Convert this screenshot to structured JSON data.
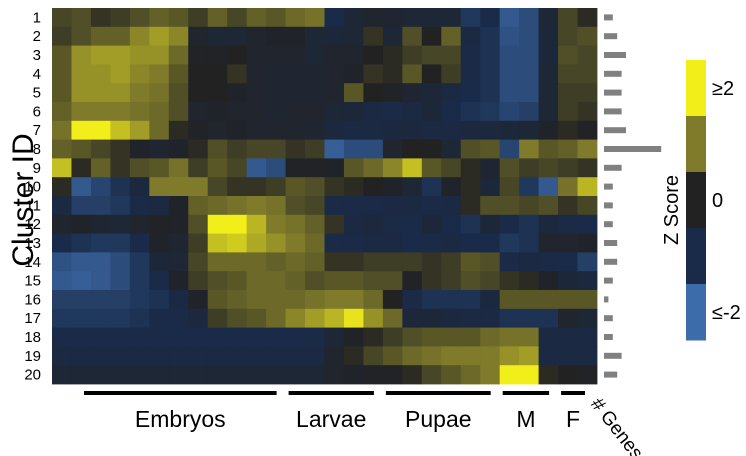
{
  "chart_data": {
    "type": "heatmap",
    "ylabel": "Cluster ID",
    "row_labels": [
      "1",
      "2",
      "3",
      "4",
      "5",
      "6",
      "7",
      "8",
      "9",
      "10",
      "11",
      "12",
      "13",
      "14",
      "15",
      "16",
      "17",
      "18",
      "19",
      "20"
    ],
    "groups": [
      {
        "label": "Embryos",
        "from": 0,
        "to": 11
      },
      {
        "label": "Larvae",
        "from": 12,
        "to": 16
      },
      {
        "label": "Pupae",
        "from": 17,
        "to": 22
      },
      {
        "label": "M",
        "from": 23,
        "to": 25
      },
      {
        "label": "F",
        "from": 26,
        "to": 27
      }
    ],
    "colorbar": {
      "title": "Z Score",
      "min": -2,
      "max": 2,
      "ticks": [
        {
          "value": 2,
          "label": "≥2"
        },
        {
          "value": 0,
          "label": "0"
        },
        {
          "value": -2,
          "label": "≤-2"
        }
      ],
      "colors": [
        "#3d6cab",
        "#1a2b4a",
        "#222222",
        "#7f7b2b",
        "#f2ee1a"
      ]
    },
    "genes_label": "# Genes",
    "gene_counts": [
      2,
      3,
      5,
      4,
      4,
      4,
      5,
      13,
      4,
      2,
      2,
      2,
      3,
      3,
      2,
      1,
      2,
      2,
      4,
      3
    ],
    "z": [
      [
        0.4,
        0.5,
        0.2,
        0.3,
        0.5,
        0.7,
        0.6,
        0.3,
        0.7,
        0.4,
        0.7,
        0.6,
        0.8,
        0.9,
        -1.0,
        -0.5,
        -0.3,
        -0.4,
        -0.5,
        -0.5,
        -0.5,
        -1.2,
        -1.0,
        -1.7,
        -1.5,
        -0.5,
        0.4,
        0.1
      ],
      [
        0.3,
        0.5,
        0.7,
        0.7,
        1.1,
        1.3,
        1.1,
        -0.3,
        -0.5,
        -0.5,
        -0.3,
        -0.2,
        -0.2,
        -0.5,
        -0.6,
        -0.5,
        0.2,
        -0.5,
        0.5,
        0.0,
        0.7,
        -0.8,
        -1.1,
        -1.6,
        -1.5,
        -0.6,
        0.4,
        0.5
      ],
      [
        0.6,
        1.2,
        1.3,
        1.3,
        1.2,
        1.2,
        0.8,
        -0.1,
        -0.1,
        0.0,
        -0.3,
        -0.3,
        -0.3,
        -0.5,
        -0.3,
        -0.3,
        0.0,
        0.1,
        0.3,
        0.4,
        0.4,
        -0.9,
        -1.1,
        -1.5,
        -1.5,
        -0.6,
        0.5,
        0.4
      ],
      [
        0.6,
        1.2,
        1.2,
        1.3,
        1.1,
        1.0,
        0.6,
        0.0,
        0.0,
        0.2,
        -0.3,
        -0.4,
        -0.4,
        -0.4,
        -0.3,
        -0.2,
        0.2,
        0.1,
        0.6,
        0.0,
        0.3,
        -0.9,
        -1.1,
        -1.5,
        -1.5,
        -0.5,
        0.4,
        0.4
      ],
      [
        0.6,
        1.2,
        1.2,
        1.2,
        1.0,
        0.9,
        0.5,
        0.0,
        0.0,
        -0.2,
        -0.3,
        -0.4,
        -0.4,
        -0.4,
        -0.3,
        0.6,
        0.0,
        -0.1,
        -0.4,
        -0.6,
        -0.8,
        -1.0,
        -1.1,
        -1.5,
        -1.5,
        -0.5,
        0.3,
        0.3
      ],
      [
        0.7,
        1.0,
        1.0,
        1.0,
        0.9,
        0.8,
        0.5,
        -0.3,
        -0.2,
        -0.3,
        -0.3,
        -0.4,
        -0.3,
        -0.3,
        -0.5,
        -0.6,
        -0.8,
        -0.9,
        -0.8,
        -0.6,
        -1.0,
        -1.1,
        -1.2,
        -1.4,
        -1.3,
        -0.5,
        0.3,
        0.2
      ],
      [
        0.9,
        2.0,
        2.0,
        1.6,
        1.3,
        0.8,
        0.1,
        -0.1,
        -0.3,
        -0.2,
        -0.3,
        -0.3,
        -0.3,
        -0.4,
        -0.7,
        -0.8,
        -0.8,
        -0.7,
        -0.7,
        -0.8,
        -0.8,
        -0.7,
        -0.7,
        -0.6,
        -0.5,
        -0.2,
        0.1,
        -0.1
      ],
      [
        0.7,
        0.6,
        0.4,
        0.2,
        -0.2,
        -0.4,
        -0.2,
        0.1,
        0.5,
        0.3,
        0.4,
        0.4,
        0.2,
        0.3,
        -1.8,
        -1.5,
        -1.5,
        -0.3,
        0.0,
        0.0,
        -0.5,
        0.5,
        0.6,
        -1.4,
        1.0,
        0.6,
        0.7,
        1.0
      ],
      [
        1.6,
        0.1,
        0.7,
        0.2,
        0.5,
        0.6,
        0.9,
        0.3,
        0.6,
        0.4,
        -1.7,
        -1.5,
        -0.1,
        -0.1,
        -0.2,
        0.6,
        0.8,
        1.1,
        1.6,
        0.6,
        0.4,
        0.1,
        -0.4,
        0.5,
        0.3,
        0.4,
        0.3,
        0.2
      ],
      [
        0.1,
        -1.7,
        -1.4,
        -1.1,
        -0.7,
        1.0,
        1.0,
        1.0,
        0.4,
        0.2,
        0.2,
        0.3,
        0.6,
        0.5,
        0.2,
        0.1,
        0.0,
        -0.2,
        -0.5,
        -1.1,
        -0.2,
        0.1,
        -0.6,
        0.4,
        -1.2,
        -1.7,
        0.9,
        1.5
      ],
      [
        -0.8,
        -1.3,
        -1.3,
        -1.2,
        -0.9,
        -0.8,
        -0.2,
        0.7,
        0.8,
        0.9,
        1.0,
        0.9,
        0.5,
        0.4,
        -0.9,
        -0.9,
        -0.9,
        -0.8,
        -0.8,
        -0.9,
        -0.8,
        0.1,
        0.5,
        0.5,
        0.4,
        0.5,
        0.2,
        0.4
      ],
      [
        -0.3,
        -0.2,
        -0.4,
        -0.5,
        -0.3,
        -0.1,
        -0.2,
        0.5,
        2.0,
        2.0,
        1.5,
        1.0,
        0.9,
        0.7,
        0.2,
        -0.8,
        -0.7,
        -0.9,
        -1.0,
        -0.6,
        -1.0,
        -1.1,
        -0.6,
        -1.0,
        -1.1,
        -0.7,
        -0.9,
        -1.0
      ],
      [
        -1.0,
        -1.1,
        -1.2,
        -1.2,
        -1.0,
        -0.2,
        -0.4,
        0.3,
        1.6,
        1.7,
        1.4,
        1.2,
        1.0,
        0.8,
        -0.9,
        -0.9,
        -0.8,
        -0.8,
        -1.0,
        -0.9,
        -0.8,
        -1.0,
        -1.0,
        -1.2,
        -1.1,
        -0.3,
        -0.3,
        -0.2
      ],
      [
        -1.6,
        -1.7,
        -1.7,
        -1.5,
        -1.2,
        -0.6,
        -0.5,
        0.4,
        0.8,
        0.8,
        0.8,
        0.7,
        0.8,
        0.7,
        0.2,
        0.2,
        0.3,
        0.3,
        0.3,
        0.2,
        0.3,
        0.6,
        0.5,
        -0.9,
        -0.8,
        -0.9,
        -1.0,
        -1.3
      ],
      [
        -1.7,
        -1.8,
        -1.7,
        -1.5,
        -1.2,
        -1.0,
        -0.2,
        0.3,
        0.5,
        0.6,
        0.8,
        0.8,
        0.7,
        0.5,
        0.6,
        0.6,
        0.5,
        0.5,
        -0.1,
        0.2,
        0.3,
        0.5,
        0.4,
        0.2,
        0.1,
        -0.2,
        -0.6,
        -0.7
      ],
      [
        -1.3,
        -1.3,
        -1.3,
        -1.3,
        -1.2,
        -1.1,
        -0.8,
        -0.2,
        0.6,
        0.7,
        0.8,
        0.8,
        0.8,
        0.9,
        1.0,
        1.0,
        0.8,
        0.0,
        -0.9,
        -1.1,
        -1.1,
        -1.1,
        -0.7,
        0.6,
        0.6,
        0.6,
        0.6,
        0.6
      ],
      [
        -1.2,
        -1.2,
        -1.2,
        -1.2,
        -1.1,
        -1.0,
        -0.9,
        -0.7,
        0.3,
        0.5,
        0.6,
        0.8,
        1.1,
        1.3,
        1.5,
        1.9,
        1.2,
        0.8,
        -0.6,
        -0.6,
        -0.7,
        -0.8,
        -0.8,
        -1.1,
        -1.1,
        -1.1,
        -0.3,
        -0.5
      ],
      [
        -1.0,
        -1.0,
        -1.0,
        -1.0,
        -1.0,
        -1.0,
        -1.0,
        -1.0,
        -1.0,
        -1.0,
        -1.0,
        -1.0,
        -1.0,
        -0.9,
        -0.5,
        -0.1,
        0.1,
        0.3,
        0.5,
        0.6,
        0.6,
        0.6,
        0.8,
        0.9,
        0.9,
        -0.8,
        -0.8,
        -0.8
      ],
      [
        -0.8,
        -0.8,
        -0.8,
        -0.8,
        -0.8,
        -0.8,
        -0.8,
        -0.8,
        -0.8,
        -0.8,
        -0.8,
        -0.8,
        -0.8,
        -0.8,
        -0.3,
        0.1,
        0.4,
        0.6,
        0.8,
        0.9,
        1.0,
        1.0,
        1.0,
        1.2,
        1.3,
        -0.8,
        -0.8,
        -0.8
      ],
      [
        -0.5,
        -0.5,
        -0.5,
        -0.5,
        -0.5,
        -0.5,
        -0.5,
        -0.5,
        -0.5,
        -0.5,
        -0.5,
        -0.5,
        -0.5,
        -0.5,
        -0.3,
        -0.2,
        -0.1,
        -0.1,
        0.1,
        0.4,
        0.6,
        0.8,
        1.0,
        2.0,
        2.0,
        0.1,
        0.0,
        -0.1
      ]
    ]
  }
}
